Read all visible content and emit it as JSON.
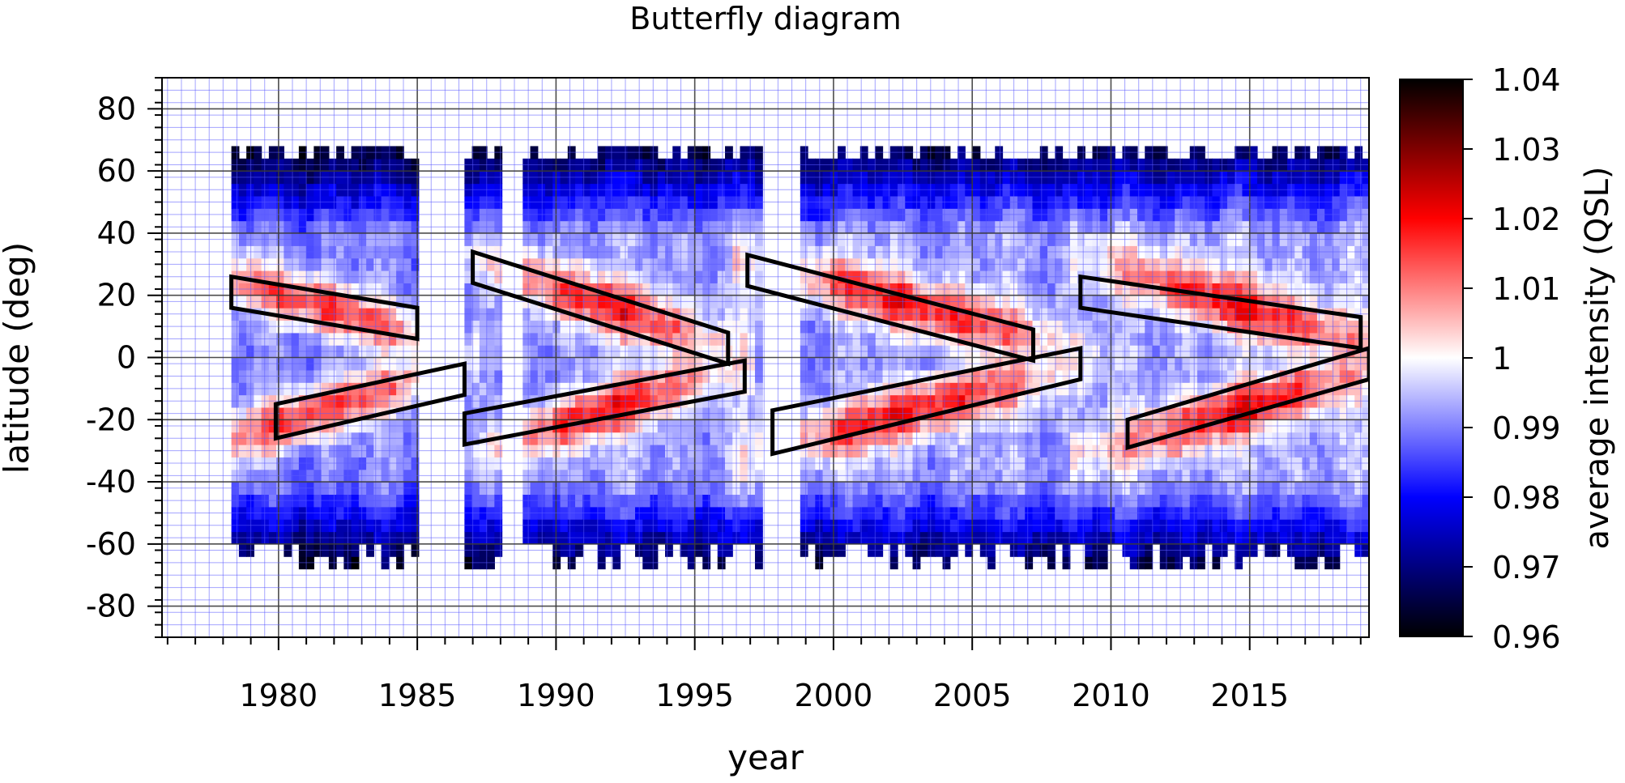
{
  "chart_data": {
    "type": "heatmap",
    "title": "Butterfly diagram",
    "xlabel": "year",
    "ylabel": "latitude (deg)",
    "xlim": [
      1975.8,
      2019.3
    ],
    "ylim": [
      -90,
      90
    ],
    "xticks": [
      1980,
      1985,
      1990,
      1995,
      2000,
      2005,
      2010,
      2015
    ],
    "xtick_labels": [
      "1980",
      "1985",
      "1990",
      "1995",
      "2000",
      "2005",
      "2010",
      "2015"
    ],
    "yticks": [
      80,
      60,
      40,
      20,
      0,
      -20,
      -40,
      -60,
      -80
    ],
    "ytick_labels": [
      "80",
      "60",
      "40",
      "20",
      "0",
      "-20",
      "-40",
      "-60",
      "-80"
    ],
    "grid": true,
    "colorbar": {
      "label": "average intensity (QSL)",
      "range": [
        0.96,
        1.04
      ],
      "ticks": [
        1.04,
        1.03,
        1.02,
        1.01,
        1,
        0.99,
        0.98,
        0.97,
        0.96
      ],
      "tick_labels": [
        "1.04",
        "1.03",
        "1.02",
        "1.01",
        "1",
        "0.99",
        "0.98",
        "0.97",
        "0.96"
      ],
      "colormap": [
        "#000000",
        "#0000ff",
        "#ffffff",
        "#ff0000",
        "#000000"
      ]
    },
    "data_coverage": [
      [
        1978.3,
        1985.0
      ],
      [
        1986.7,
        1987.8
      ],
      [
        1988.8,
        1997.3
      ],
      [
        1998.8,
        2019.3
      ]
    ],
    "annotation_polygons": [
      {
        "name": "cycle-21-north",
        "points": [
          [
            1978.3,
            26
          ],
          [
            1985,
            16
          ],
          [
            1985,
            6
          ],
          [
            1978.3,
            16
          ]
        ]
      },
      {
        "name": "cycle-21-south",
        "points": [
          [
            1979.9,
            -15
          ],
          [
            1986.7,
            -2
          ],
          [
            1986.7,
            -12
          ],
          [
            1979.9,
            -26
          ]
        ]
      },
      {
        "name": "cycle-22-north",
        "points": [
          [
            1987.0,
            34
          ],
          [
            1996.2,
            8
          ],
          [
            1996.2,
            -2
          ],
          [
            1987.0,
            24
          ]
        ]
      },
      {
        "name": "cycle-22-south",
        "points": [
          [
            1986.7,
            -18
          ],
          [
            1996.8,
            -1
          ],
          [
            1996.8,
            -11
          ],
          [
            1986.7,
            -28
          ]
        ]
      },
      {
        "name": "cycle-23-north",
        "points": [
          [
            1996.9,
            33
          ],
          [
            2007.2,
            9
          ],
          [
            2007.2,
            -1
          ],
          [
            1996.9,
            23
          ]
        ]
      },
      {
        "name": "cycle-23-south",
        "points": [
          [
            1997.8,
            -17
          ],
          [
            2008.9,
            3
          ],
          [
            2008.9,
            -7
          ],
          [
            1997.8,
            -31
          ]
        ]
      },
      {
        "name": "cycle-24-north",
        "points": [
          [
            2008.9,
            26
          ],
          [
            2019.0,
            13
          ],
          [
            2019.0,
            3
          ],
          [
            2008.9,
            16
          ]
        ]
      },
      {
        "name": "cycle-24-south",
        "points": [
          [
            2010.6,
            -20
          ],
          [
            2019.3,
            3
          ],
          [
            2019.3,
            -7
          ],
          [
            2010.6,
            -29
          ]
        ]
      }
    ]
  }
}
